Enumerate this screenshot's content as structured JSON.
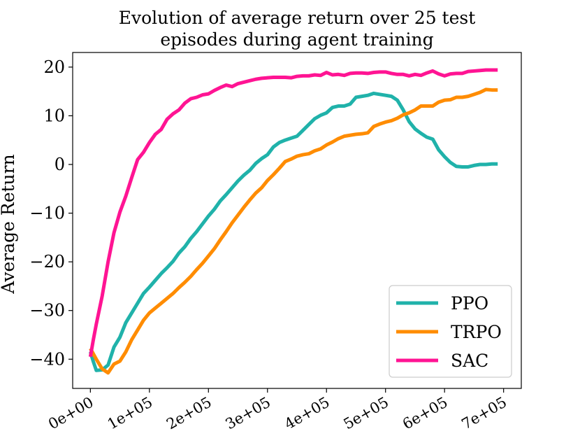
{
  "chart_data": {
    "type": "line",
    "title": [
      "Evolution of average return over 25 test",
      "episodes during agent training"
    ],
    "xlabel": "",
    "ylabel": "Average Return",
    "xlim": [
      -30000,
      730000
    ],
    "ylim": [
      -46,
      23
    ],
    "xticks": [
      0,
      100000,
      200000,
      300000,
      400000,
      500000,
      600000,
      700000
    ],
    "xtick_labels": [
      "0e+00",
      "1e+05",
      "2e+05",
      "3e+05",
      "4e+05",
      "5e+05",
      "6e+05",
      "7e+05"
    ],
    "yticks": [
      -40,
      -30,
      -20,
      -10,
      0,
      10,
      20
    ],
    "ytick_labels": [
      "−40",
      "−30",
      "−20",
      "−10",
      "0",
      "10",
      "20"
    ],
    "grid": false,
    "legend_position": "lower-right",
    "series": [
      {
        "name": "PPO",
        "color": "#20b2aa",
        "x": [
          0,
          5000,
          10000,
          20000,
          30000,
          40000,
          50000,
          60000,
          70000,
          80000,
          90000,
          100000,
          110000,
          120000,
          130000,
          140000,
          150000,
          160000,
          170000,
          180000,
          190000,
          200000,
          210000,
          220000,
          230000,
          240000,
          250000,
          260000,
          270000,
          280000,
          290000,
          300000,
          310000,
          320000,
          330000,
          340000,
          350000,
          360000,
          370000,
          380000,
          390000,
          400000,
          410000,
          420000,
          430000,
          440000,
          450000,
          460000,
          470000,
          480000,
          490000,
          500000,
          510000,
          520000,
          530000,
          540000,
          550000,
          560000,
          570000,
          580000,
          590000,
          600000,
          610000,
          620000,
          630000,
          640000,
          650000,
          660000,
          670000,
          680000,
          690000
        ],
        "values": [
          -38.5,
          -40.5,
          -42.3,
          -42.2,
          -41.2,
          -37.5,
          -35.5,
          -32.5,
          -30.5,
          -28.5,
          -26.5,
          -25.2,
          -23.8,
          -22.4,
          -21.2,
          -19.9,
          -18.2,
          -16.9,
          -15.2,
          -13.8,
          -12.2,
          -10.6,
          -9.2,
          -7.5,
          -6.2,
          -4.8,
          -3.4,
          -2.2,
          -1.2,
          0.2,
          1.2,
          2.0,
          3.6,
          4.5,
          5.0,
          5.4,
          5.8,
          7.0,
          8.2,
          9.4,
          10.1,
          10.6,
          11.7,
          12.0,
          12.0,
          12.4,
          13.8,
          14.0,
          14.2,
          14.6,
          14.4,
          14.2,
          14.0,
          13.2,
          11.2,
          8.8,
          7.3,
          6.4,
          5.6,
          5.2,
          3.0,
          1.6,
          0.4,
          -0.4,
          -0.5,
          -0.5,
          -0.2,
          0.0,
          0.0,
          0.1,
          0.1
        ]
      },
      {
        "name": "TRPO",
        "color": "#ff8c00",
        "x": [
          0,
          10000,
          20000,
          30000,
          40000,
          50000,
          60000,
          70000,
          80000,
          90000,
          100000,
          110000,
          120000,
          130000,
          140000,
          150000,
          160000,
          170000,
          180000,
          190000,
          200000,
          210000,
          220000,
          230000,
          240000,
          250000,
          260000,
          270000,
          280000,
          290000,
          300000,
          310000,
          320000,
          330000,
          340000,
          350000,
          360000,
          370000,
          380000,
          390000,
          400000,
          410000,
          420000,
          430000,
          440000,
          450000,
          460000,
          470000,
          480000,
          490000,
          500000,
          510000,
          520000,
          530000,
          540000,
          550000,
          560000,
          570000,
          580000,
          590000,
          600000,
          610000,
          620000,
          630000,
          640000,
          650000,
          660000,
          670000,
          680000,
          690000
        ],
        "values": [
          -37.8,
          -40.0,
          -42.0,
          -42.8,
          -41.0,
          -40.4,
          -38.5,
          -36.0,
          -34.0,
          -32.0,
          -30.5,
          -29.5,
          -28.5,
          -27.5,
          -26.5,
          -25.3,
          -24.2,
          -23.0,
          -21.6,
          -20.3,
          -18.8,
          -17.3,
          -15.5,
          -13.8,
          -12.0,
          -10.4,
          -8.8,
          -7.3,
          -5.9,
          -4.8,
          -3.3,
          -2.1,
          -0.8,
          0.6,
          1.1,
          1.7,
          2.0,
          2.2,
          2.8,
          3.2,
          4.0,
          4.6,
          5.3,
          5.8,
          6.0,
          6.2,
          6.3,
          6.5,
          7.8,
          8.3,
          8.7,
          9.0,
          9.5,
          10.2,
          10.6,
          11.2,
          12.0,
          12.0,
          12.0,
          12.8,
          13.2,
          13.3,
          13.8,
          13.8,
          14.0,
          14.4,
          14.8,
          15.4,
          15.3,
          15.3
        ]
      },
      {
        "name": "SAC",
        "color": "#ff1493",
        "x": [
          0,
          5000,
          10000,
          20000,
          30000,
          40000,
          50000,
          60000,
          70000,
          80000,
          90000,
          100000,
          110000,
          120000,
          130000,
          140000,
          150000,
          160000,
          170000,
          180000,
          190000,
          200000,
          210000,
          220000,
          230000,
          240000,
          250000,
          260000,
          270000,
          280000,
          290000,
          300000,
          310000,
          320000,
          330000,
          340000,
          350000,
          360000,
          370000,
          380000,
          390000,
          400000,
          410000,
          420000,
          430000,
          440000,
          450000,
          460000,
          470000,
          480000,
          490000,
          500000,
          510000,
          520000,
          530000,
          540000,
          550000,
          560000,
          570000,
          580000,
          590000,
          600000,
          610000,
          620000,
          630000,
          640000,
          650000,
          660000,
          670000,
          680000,
          690000
        ],
        "values": [
          -39.5,
          -36.0,
          -32.8,
          -27.0,
          -20.0,
          -14.0,
          -9.8,
          -6.5,
          -2.7,
          1.0,
          2.5,
          4.5,
          6.2,
          7.2,
          9.3,
          10.4,
          11.2,
          12.6,
          13.5,
          13.8,
          14.3,
          14.5,
          15.2,
          15.8,
          16.3,
          16.0,
          16.6,
          16.9,
          17.2,
          17.5,
          17.7,
          17.8,
          17.9,
          17.9,
          17.9,
          17.8,
          18.1,
          18.2,
          18.2,
          18.4,
          18.3,
          18.9,
          18.4,
          18.5,
          18.3,
          18.7,
          18.8,
          18.8,
          18.7,
          18.9,
          19.0,
          19.0,
          18.7,
          18.5,
          18.5,
          18.2,
          18.5,
          18.3,
          18.8,
          19.2,
          18.6,
          18.2,
          18.6,
          18.7,
          18.7,
          19.1,
          19.2,
          19.3,
          19.4,
          19.4,
          19.4
        ]
      }
    ]
  }
}
